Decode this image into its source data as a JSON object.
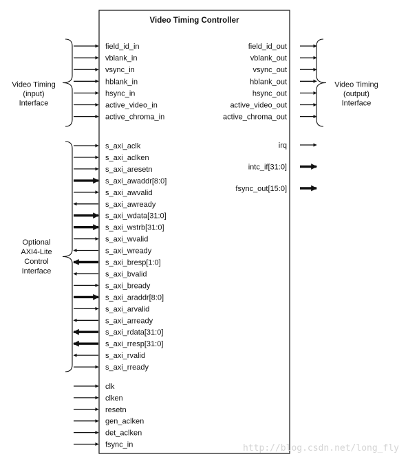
{
  "block": {
    "title": "Video Timing Controller"
  },
  "groups": {
    "video_in": [
      "Video Timing",
      "(input)",
      "Interface"
    ],
    "video_out": [
      "Video Timing",
      "(output)",
      "Interface"
    ],
    "axi": [
      "Optional",
      "AXI4-Lite",
      "Control",
      "Interface"
    ]
  },
  "ports": {
    "video_in": [
      {
        "name": "field_id_in",
        "dir": "in",
        "bus": false
      },
      {
        "name": "vblank_in",
        "dir": "in",
        "bus": false
      },
      {
        "name": "vsync_in",
        "dir": "in",
        "bus": false
      },
      {
        "name": "hblank_in",
        "dir": "in",
        "bus": false
      },
      {
        "name": "hsync_in",
        "dir": "in",
        "bus": false
      },
      {
        "name": "active_video_in",
        "dir": "in",
        "bus": false
      },
      {
        "name": "active_chroma_in",
        "dir": "in",
        "bus": false
      }
    ],
    "video_out": [
      {
        "name": "field_id_out",
        "dir": "out",
        "bus": false
      },
      {
        "name": "vblank_out",
        "dir": "out",
        "bus": false
      },
      {
        "name": "vsync_out",
        "dir": "out",
        "bus": false
      },
      {
        "name": "hblank_out",
        "dir": "out",
        "bus": false
      },
      {
        "name": "hsync_out",
        "dir": "out",
        "bus": false
      },
      {
        "name": "active_video_out",
        "dir": "out",
        "bus": false
      },
      {
        "name": "active_chroma_out",
        "dir": "out",
        "bus": false
      }
    ],
    "misc_out": [
      {
        "name": "irq",
        "dir": "out",
        "bus": false
      },
      {
        "name": "intc_if[31:0]",
        "dir": "out",
        "bus": true
      },
      {
        "name": "fsync_out[15:0]",
        "dir": "out",
        "bus": true
      }
    ],
    "axi": [
      {
        "name": "s_axi_aclk",
        "dir": "in",
        "bus": false
      },
      {
        "name": "s_axi_aclken",
        "dir": "in",
        "bus": false
      },
      {
        "name": "s_axi_aresetn",
        "dir": "in",
        "bus": false
      },
      {
        "name": "s_axi_awaddr[8:0]",
        "dir": "in",
        "bus": true
      },
      {
        "name": "s_axi_awvalid",
        "dir": "in",
        "bus": false
      },
      {
        "name": "s_axi_awready",
        "dir": "out",
        "bus": false
      },
      {
        "name": "s_axi_wdata[31:0]",
        "dir": "in",
        "bus": true
      },
      {
        "name": "s_axi_wstrb[31:0]",
        "dir": "in",
        "bus": true
      },
      {
        "name": "s_axi_wvalid",
        "dir": "in",
        "bus": false
      },
      {
        "name": "s_axi_wready",
        "dir": "out",
        "bus": false
      },
      {
        "name": "s_axi_bresp[1:0]",
        "dir": "out",
        "bus": true
      },
      {
        "name": "s_axi_bvalid",
        "dir": "out",
        "bus": false
      },
      {
        "name": "s_axi_bready",
        "dir": "in",
        "bus": false
      },
      {
        "name": "s_axi_araddr[8:0]",
        "dir": "in",
        "bus": true
      },
      {
        "name": "s_axi_arvalid",
        "dir": "in",
        "bus": false
      },
      {
        "name": "s_axi_arready",
        "dir": "out",
        "bus": false
      },
      {
        "name": "s_axi_rdata[31:0]",
        "dir": "out",
        "bus": true
      },
      {
        "name": "s_axi_rresp[31:0]",
        "dir": "out",
        "bus": true
      },
      {
        "name": "s_axi_rvalid",
        "dir": "out",
        "bus": false
      },
      {
        "name": "s_axi_rready",
        "dir": "in",
        "bus": false
      }
    ],
    "clocks": [
      {
        "name": "clk",
        "dir": "in",
        "bus": false
      },
      {
        "name": "clken",
        "dir": "in",
        "bus": false
      },
      {
        "name": "resetn",
        "dir": "in",
        "bus": false
      },
      {
        "name": "gen_aclken",
        "dir": "in",
        "bus": false
      },
      {
        "name": "det_aclken",
        "dir": "in",
        "bus": false
      },
      {
        "name": "fsync_in",
        "dir": "in",
        "bus": false
      }
    ]
  },
  "watermark": "http://blog.csdn.net/long_fly",
  "colors": {
    "line": "#111111",
    "watermark": "#d4d4d4"
  }
}
